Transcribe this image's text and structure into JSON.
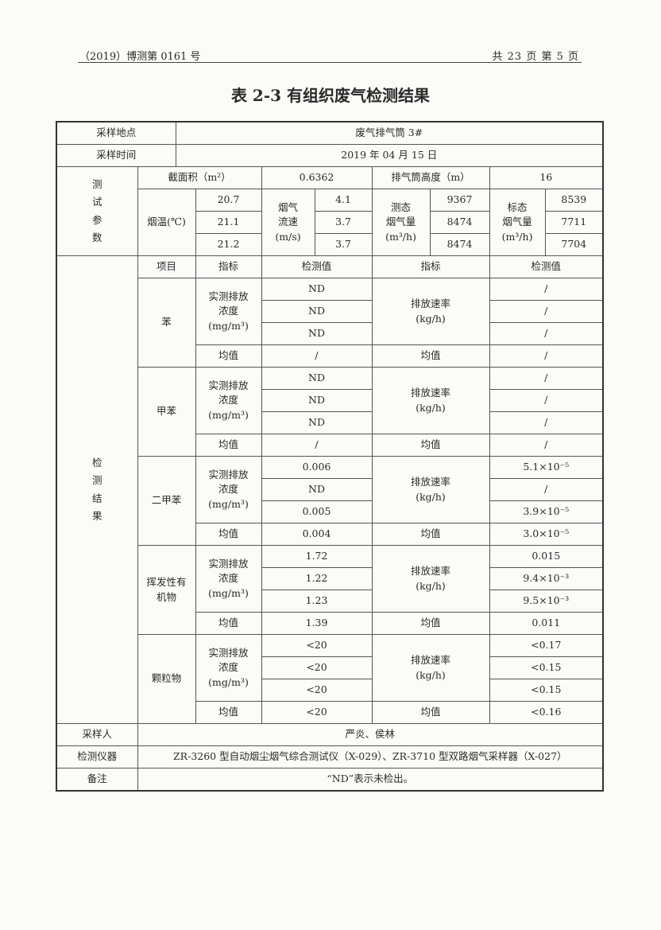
{
  "header": {
    "report_no": "（2019）博测第 0161 号",
    "page_info": "共 23 页  第 5 页"
  },
  "title": "表 2-3  有组织废气检测结果",
  "sampling": {
    "location_label": "采样地点",
    "location": "废气排气筒 3#",
    "time_label": "采样时间",
    "time": "2019 年 04 月 15 日"
  },
  "params": {
    "section_label": "测\n试\n参\n数",
    "area_label": "截面积（m²）",
    "area": "0.6362",
    "height_label": "排气筒高度（m）",
    "height": "16",
    "temp_label": "烟温(℃)",
    "temps": [
      "20.7",
      "21.1",
      "21.2"
    ],
    "velocity_label": "烟气\n流速\n(m/s)",
    "velocities": [
      "4.1",
      "3.7",
      "3.7"
    ],
    "actual_flow_label": "测态\n烟气量\n(m³/h)",
    "actual_flows": [
      "9367",
      "8474",
      "8474"
    ],
    "std_flow_label": "标态\n烟气量\n(m³/h)",
    "std_flows": [
      "8539",
      "7711",
      "7704"
    ]
  },
  "results": {
    "section_label": "检\n测\n结\n果",
    "headers": [
      "项目",
      "指标",
      "检测值",
      "指标",
      "检测值"
    ],
    "conc_label": "实测排放\n浓度\n(mg/m³)",
    "rate_label": "排放速率\n(kg/h)",
    "mean_label": "均值",
    "items": [
      {
        "name": "苯",
        "conc": [
          "ND",
          "ND",
          "ND"
        ],
        "conc_mean": "/",
        "rate": [
          "/",
          "/",
          "/"
        ],
        "rate_mean": "/"
      },
      {
        "name": "甲苯",
        "conc": [
          "ND",
          "ND",
          "ND"
        ],
        "conc_mean": "/",
        "rate": [
          "/",
          "/",
          "/"
        ],
        "rate_mean": "/"
      },
      {
        "name": "二甲苯",
        "conc": [
          "0.006",
          "ND",
          "0.005"
        ],
        "conc_mean": "0.004",
        "rate": [
          "5.1×10⁻⁵",
          "/",
          "3.9×10⁻⁵"
        ],
        "rate_mean": "3.0×10⁻⁵"
      },
      {
        "name": "挥发性有\n机物",
        "conc": [
          "1.72",
          "1.22",
          "1.23"
        ],
        "conc_mean": "1.39",
        "rate": [
          "0.015",
          "9.4×10⁻³",
          "9.5×10⁻³"
        ],
        "rate_mean": "0.011"
      },
      {
        "name": "颗粒物",
        "conc": [
          "<20",
          "<20",
          "<20"
        ],
        "conc_mean": "<20",
        "rate": [
          "<0.17",
          "<0.15",
          "<0.15"
        ],
        "rate_mean": "<0.16"
      }
    ]
  },
  "footer": {
    "sampler_label": "采样人",
    "sampler": "严炎、侯林",
    "instrument_label": "检测仪器",
    "instrument": "ZR-3260 型自动烟尘烟气综合测试仪（X-029）、ZR-3710 型双路烟气采样器（X-027）",
    "note_label": "备注",
    "note": "“ND”表示未检出。"
  }
}
